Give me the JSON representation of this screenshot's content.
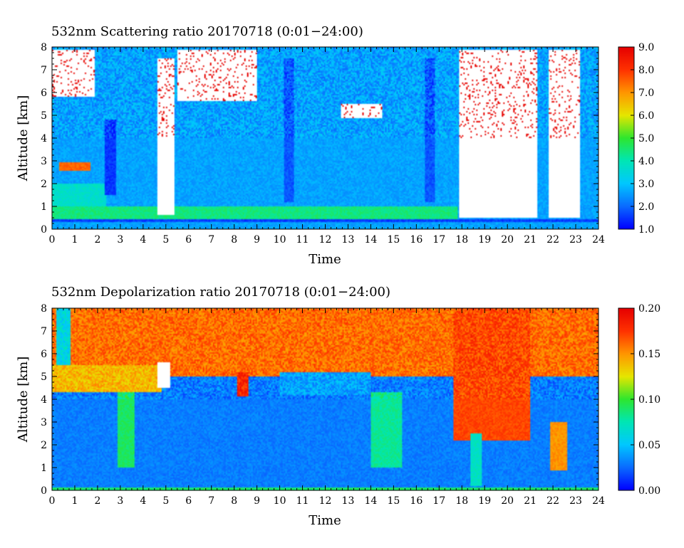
{
  "chart_data": [
    {
      "type": "heatmap",
      "title": "532nm Scattering ratio  20170718 (0:01−24:00)",
      "xlabel": "Time",
      "ylabel": "Altitude [km]",
      "xlim": [
        0,
        24
      ],
      "ylim": [
        0,
        8
      ],
      "x_ticks": [
        "0",
        "1",
        "2",
        "3",
        "4",
        "5",
        "6",
        "7",
        "8",
        "9",
        "10",
        "11",
        "12",
        "13",
        "14",
        "15",
        "16",
        "17",
        "18",
        "19",
        "20",
        "21",
        "22",
        "23",
        "24"
      ],
      "y_ticks": [
        "0",
        "1",
        "2",
        "3",
        "4",
        "5",
        "6",
        "7",
        "8"
      ],
      "colorbar": {
        "min": 1.0,
        "max": 9.0,
        "ticks": [
          "1.0",
          "2.0",
          "3.0",
          "4.0",
          "5.0",
          "6.0",
          "7.0",
          "8.0",
          "9.0"
        ]
      },
      "colormap": [
        "#0000ff",
        "#0a6cff",
        "#00c8ff",
        "#00e6b4",
        "#2ee62e",
        "#e6e600",
        "#ff9600",
        "#ff3200",
        "#e60000"
      ],
      "saturated_color": "#ffffff",
      "background_value": 2.6,
      "features": [
        {
          "name": "surface-layer",
          "x": [
            0,
            24
          ],
          "y": [
            0.3,
            0.45
          ],
          "value": 1.6
        },
        {
          "name": "boundary-layer",
          "x": [
            0,
            17.8
          ],
          "y": [
            0.45,
            1.0
          ],
          "value": 4.4
        },
        {
          "name": "aerosol-layer-early",
          "x": [
            0,
            2.4
          ],
          "y": [
            1.0,
            2.0
          ],
          "value": 3.7
        },
        {
          "name": "aerosol-band",
          "x": [
            0.3,
            1.7
          ],
          "y": [
            2.55,
            2.95
          ],
          "value": 7.5
        },
        {
          "name": "cloud-early",
          "x": [
            0,
            1.9
          ],
          "y": [
            5.8,
            7.9
          ],
          "value": 9.5
        },
        {
          "name": "cloud-5h",
          "x": [
            4.6,
            5.4
          ],
          "y": [
            0.6,
            7.5
          ],
          "value": 9.5
        },
        {
          "name": "cloud-6-9h",
          "x": [
            5.5,
            9.0
          ],
          "y": [
            5.6,
            7.9
          ],
          "value": 9.5
        },
        {
          "name": "cloud-mid",
          "x": [
            12.7,
            14.5
          ],
          "y": [
            4.9,
            5.5
          ],
          "value": 9.5
        },
        {
          "name": "cloud-late",
          "x": [
            17.9,
            21.3
          ],
          "y": [
            0.5,
            7.9
          ],
          "value": 9.5
        },
        {
          "name": "cloud-22h",
          "x": [
            21.8,
            23.2
          ],
          "y": [
            0.5,
            7.9
          ],
          "value": 9.5
        },
        {
          "name": "clear-column",
          "x": [
            2.3,
            2.8
          ],
          "y": [
            1.5,
            4.8
          ],
          "value": 1.5
        },
        {
          "name": "clear-column",
          "x": [
            10.2,
            10.6
          ],
          "y": [
            1.2,
            7.5
          ],
          "value": 1.8
        },
        {
          "name": "clear-column",
          "x": [
            16.4,
            16.8
          ],
          "y": [
            1.2,
            7.5
          ],
          "value": 1.8
        }
      ]
    },
    {
      "type": "heatmap",
      "title": "532nm Depolarization ratio  20170718 (0:01−24:00)",
      "xlabel": "Time",
      "ylabel": "Altitude [km]",
      "xlim": [
        0,
        24
      ],
      "ylim": [
        0,
        8
      ],
      "x_ticks": [
        "0",
        "1",
        "2",
        "3",
        "4",
        "5",
        "6",
        "7",
        "8",
        "9",
        "10",
        "11",
        "12",
        "13",
        "14",
        "15",
        "16",
        "17",
        "18",
        "19",
        "20",
        "21",
        "22",
        "23",
        "24"
      ],
      "y_ticks": [
        "0",
        "1",
        "2",
        "3",
        "4",
        "5",
        "6",
        "7",
        "8"
      ],
      "colorbar": {
        "min": 0.0,
        "max": 0.2,
        "ticks": [
          "0.00",
          "0.05",
          "0.10",
          "0.15",
          "0.20"
        ]
      },
      "colormap": [
        "#0000ff",
        "#0a6cff",
        "#00c8ff",
        "#00e6b4",
        "#2ee62e",
        "#e6e600",
        "#ff9600",
        "#ff3200",
        "#e60000"
      ],
      "saturated_color": "#ffffff",
      "background_value": 0.03,
      "features": [
        {
          "name": "upper-troposphere",
          "x": [
            0,
            24
          ],
          "y": [
            5.0,
            8.0
          ],
          "value": 0.16
        },
        {
          "name": "upper-troposphere-late",
          "x": [
            17.6,
            21.0
          ],
          "y": [
            2.2,
            8.0
          ],
          "value": 0.17
        },
        {
          "name": "dust-layer",
          "x": [
            0,
            4.8
          ],
          "y": [
            4.3,
            5.5
          ],
          "value": 0.14
        },
        {
          "name": "mid-clear",
          "x": [
            10.0,
            14.0
          ],
          "y": [
            4.2,
            5.2
          ],
          "value": 0.04
        },
        {
          "name": "column-5h",
          "x": [
            4.6,
            5.2
          ],
          "y": [
            4.5,
            5.6
          ],
          "value": 0.25
        },
        {
          "name": "column-8h",
          "x": [
            8.1,
            8.6
          ],
          "y": [
            4.1,
            5.2
          ],
          "value": 0.18
        },
        {
          "name": "column-early",
          "x": [
            0.2,
            0.8
          ],
          "y": [
            5.5,
            8.0
          ],
          "value": 0.06
        },
        {
          "name": "surface-band",
          "x": [
            0,
            24
          ],
          "y": [
            0,
            0.12
          ],
          "value": 0.09
        },
        {
          "name": "column-19h",
          "x": [
            18.4,
            18.9
          ],
          "y": [
            0.2,
            2.5
          ],
          "value": 0.07
        },
        {
          "name": "column-22h",
          "x": [
            21.9,
            22.6
          ],
          "y": [
            0.9,
            3.0
          ],
          "value": 0.15
        },
        {
          "name": "low-column",
          "x": [
            2.9,
            3.6
          ],
          "y": [
            1.0,
            4.3
          ],
          "value": 0.09
        },
        {
          "name": "low-column",
          "x": [
            14.0,
            15.4
          ],
          "y": [
            1.0,
            4.3
          ],
          "value": 0.08
        }
      ]
    }
  ]
}
